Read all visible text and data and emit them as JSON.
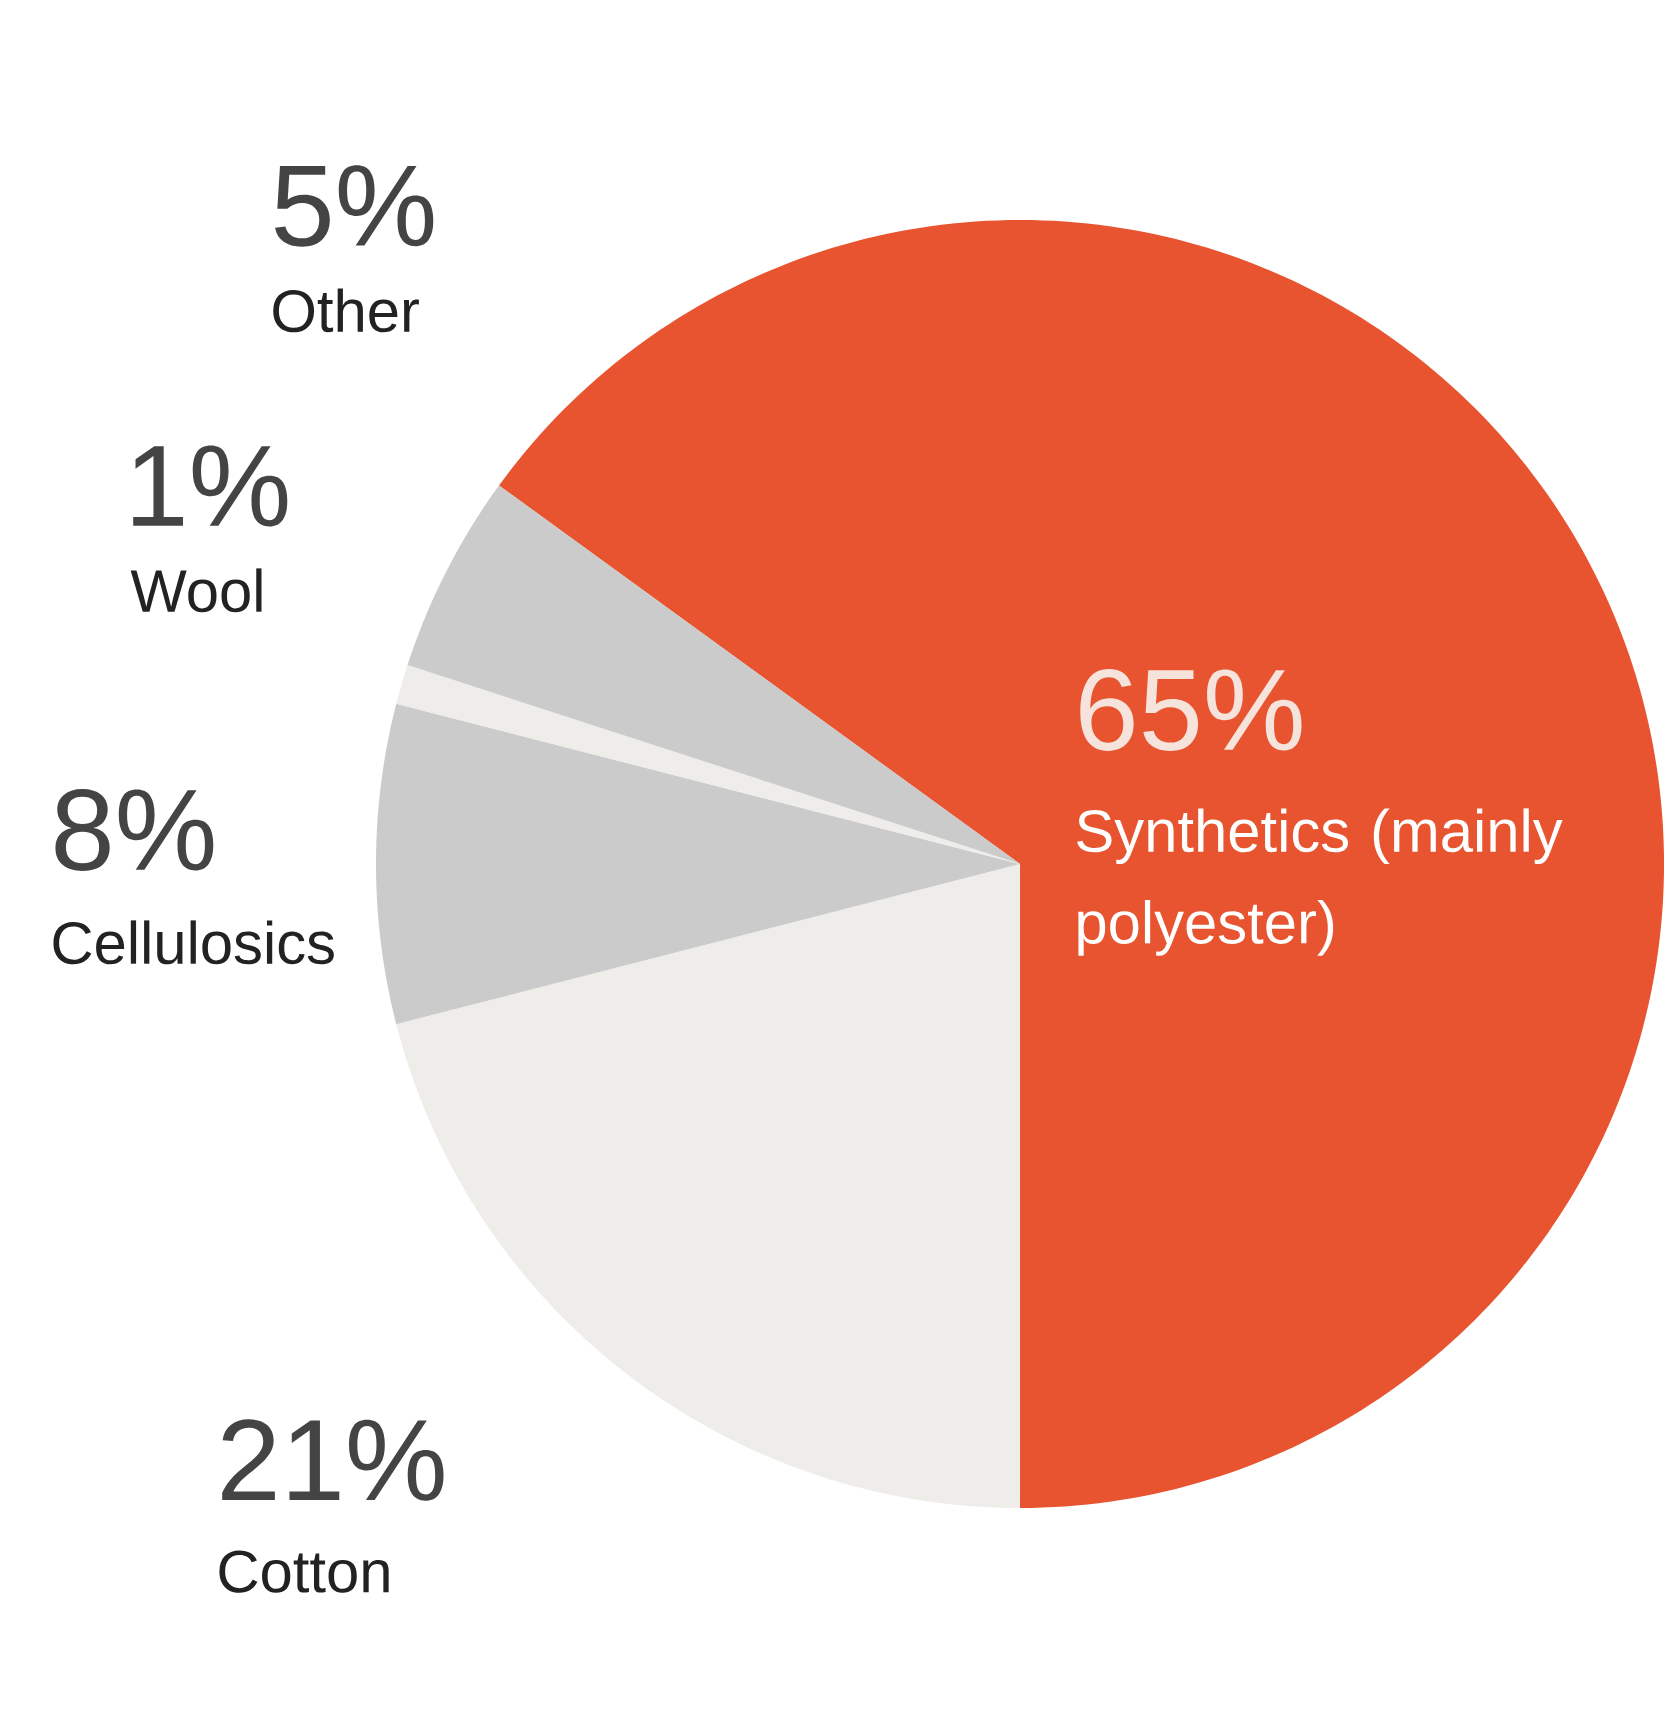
{
  "chart_data": {
    "type": "pie",
    "categories": [
      "Synthetics (mainly polyester)",
      "Cotton",
      "Cellulosics",
      "Wool",
      "Other"
    ],
    "values": [
      65,
      21,
      8,
      1,
      5
    ],
    "value_labels": [
      "65%",
      "21%",
      "8%",
      "1%",
      "5%"
    ],
    "colors": [
      "#e8542f",
      "#eeedea",
      "#cbcbcb",
      "#eeedea",
      "#cbcbcb"
    ]
  }
}
